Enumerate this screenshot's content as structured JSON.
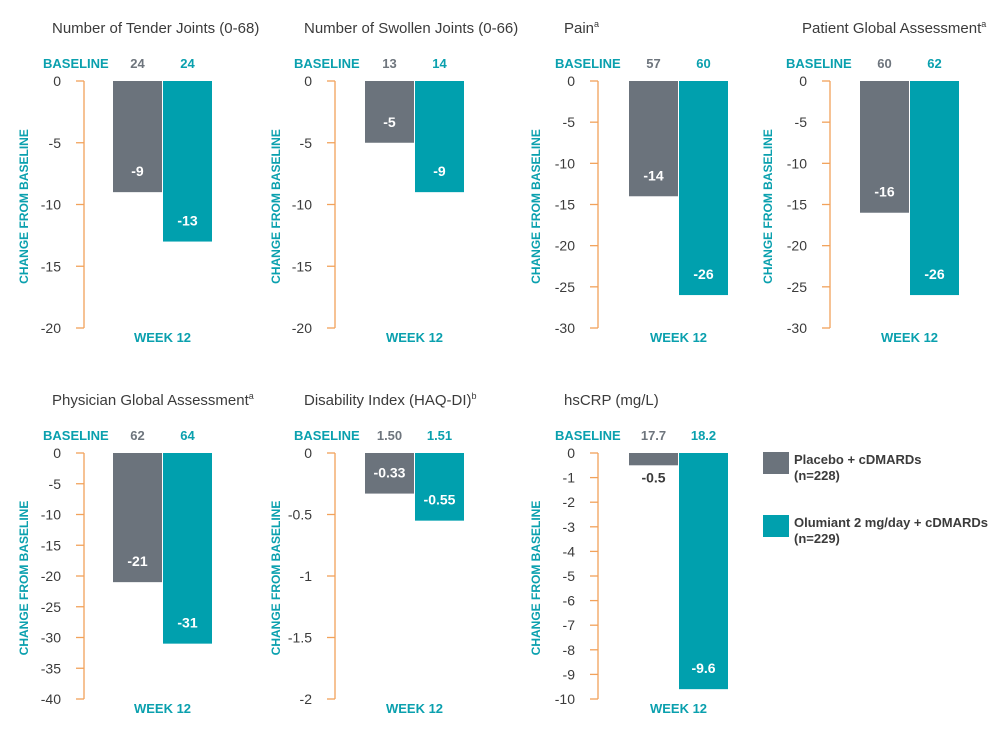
{
  "colors": {
    "placebo": "#6b737c",
    "olumiant": "#00a0ae",
    "axis": "#f2a25b",
    "teal_text": "#0aa0ae",
    "dark_text": "#3b3b3b",
    "gray_text": "#6e757d"
  },
  "legend": [
    {
      "label": "Placebo + cDMARDs",
      "sub": "(n=228)",
      "color": "#6b737c"
    },
    {
      "label": "Olumiant 2 mg/day + cDMARDs",
      "sub": "(n=229)",
      "color": "#00a0ae"
    }
  ],
  "chart_data": [
    {
      "type": "bar",
      "title": "Number of Tender Joints (0-68)",
      "title_sup": "",
      "baseline_label": "BASELINE",
      "baseline": [
        "24",
        "24"
      ],
      "xlabel": "WEEK 12",
      "ylabel": "CHANGE FROM BASELINE",
      "ylim": [
        -20,
        0
      ],
      "yticks": [
        "0",
        "-5",
        "-10",
        "-15",
        "-20"
      ],
      "series": [
        {
          "name": "Placebo + cDMARDs",
          "values": [
            -9
          ],
          "label": "-9"
        },
        {
          "name": "Olumiant 2 mg/day + cDMARDs",
          "values": [
            -13
          ],
          "label": "-13"
        }
      ]
    },
    {
      "type": "bar",
      "title": "Number of Swollen Joints (0-66)",
      "title_sup": "",
      "baseline_label": "BASELINE",
      "baseline": [
        "13",
        "14"
      ],
      "xlabel": "WEEK 12",
      "ylabel": "CHANGE FROM BASELINE",
      "ylim": [
        -20,
        0
      ],
      "yticks": [
        "0",
        "-5",
        "-10",
        "-15",
        "-20"
      ],
      "series": [
        {
          "name": "Placebo + cDMARDs",
          "values": [
            -5
          ],
          "label": "-5"
        },
        {
          "name": "Olumiant 2 mg/day + cDMARDs",
          "values": [
            -9
          ],
          "label": "-9"
        }
      ]
    },
    {
      "type": "bar",
      "title": "Pain",
      "title_sup": "a",
      "baseline_label": "BASELINE",
      "baseline": [
        "57",
        "60"
      ],
      "xlabel": "WEEK 12",
      "ylabel": "CHANGE FROM BASELINE",
      "ylim": [
        -30,
        0
      ],
      "yticks": [
        "0",
        "-5",
        "-10",
        "-15",
        "-20",
        "-25",
        "-30"
      ],
      "series": [
        {
          "name": "Placebo + cDMARDs",
          "values": [
            -14
          ],
          "label": "-14"
        },
        {
          "name": "Olumiant 2 mg/day + cDMARDs",
          "values": [
            -26
          ],
          "label": "-26"
        }
      ]
    },
    {
      "type": "bar",
      "title": "Patient Global Assessment",
      "title_sup": "a",
      "baseline_label": "BASELINE",
      "baseline": [
        "60",
        "62"
      ],
      "xlabel": "WEEK 12",
      "ylabel": "CHANGE FROM BASELINE",
      "ylim": [
        -30,
        0
      ],
      "yticks": [
        "0",
        "-5",
        "-10",
        "-15",
        "-20",
        "-25",
        "-30"
      ],
      "series": [
        {
          "name": "Placebo + cDMARDs",
          "values": [
            -16
          ],
          "label": "-16"
        },
        {
          "name": "Olumiant 2 mg/day + cDMARDs",
          "values": [
            -26
          ],
          "label": "-26"
        }
      ]
    },
    {
      "type": "bar",
      "title": "Physician Global Assessment",
      "title_sup": "a",
      "baseline_label": "BASELINE",
      "baseline": [
        "62",
        "64"
      ],
      "xlabel": "WEEK 12",
      "ylabel": "CHANGE FROM BASELINE",
      "ylim": [
        -40,
        0
      ],
      "yticks": [
        "0",
        "-5",
        "-10",
        "-15",
        "-20",
        "-25",
        "-30",
        "-35",
        "-40"
      ],
      "series": [
        {
          "name": "Placebo + cDMARDs",
          "values": [
            -21
          ],
          "label": "-21"
        },
        {
          "name": "Olumiant 2 mg/day + cDMARDs",
          "values": [
            -31
          ],
          "label": "-31"
        }
      ]
    },
    {
      "type": "bar",
      "title": "Disability Index (HAQ-DI)",
      "title_sup": "b",
      "baseline_label": "BASELINE",
      "baseline": [
        "1.50",
        "1.51"
      ],
      "xlabel": "WEEK 12",
      "ylabel": "CHANGE FROM BASELINE",
      "ylim": [
        -2,
        0
      ],
      "yticks": [
        "0",
        "-0.5",
        "-1",
        "-1.5",
        "-2"
      ],
      "series": [
        {
          "name": "Placebo + cDMARDs",
          "values": [
            -0.33
          ],
          "label": "-0.33"
        },
        {
          "name": "Olumiant 2 mg/day + cDMARDs",
          "values": [
            -0.55
          ],
          "label": "-0.55"
        }
      ]
    },
    {
      "type": "bar",
      "title": "hsCRP (mg/L)",
      "title_sup": "",
      "baseline_label": "BASELINE",
      "baseline": [
        "17.7",
        "18.2"
      ],
      "xlabel": "WEEK 12",
      "ylabel": "CHANGE FROM BASELINE",
      "ylim": [
        -10,
        0
      ],
      "yticks": [
        "0",
        "-1",
        "-2",
        "-3",
        "-4",
        "-5",
        "-6",
        "-7",
        "-8",
        "-9",
        "-10"
      ],
      "series": [
        {
          "name": "Placebo + cDMARDs",
          "values": [
            -0.5
          ],
          "label": "-0.5"
        },
        {
          "name": "Olumiant 2 mg/day + cDMARDs",
          "values": [
            -9.6
          ],
          "label": "-9.6"
        }
      ]
    }
  ]
}
